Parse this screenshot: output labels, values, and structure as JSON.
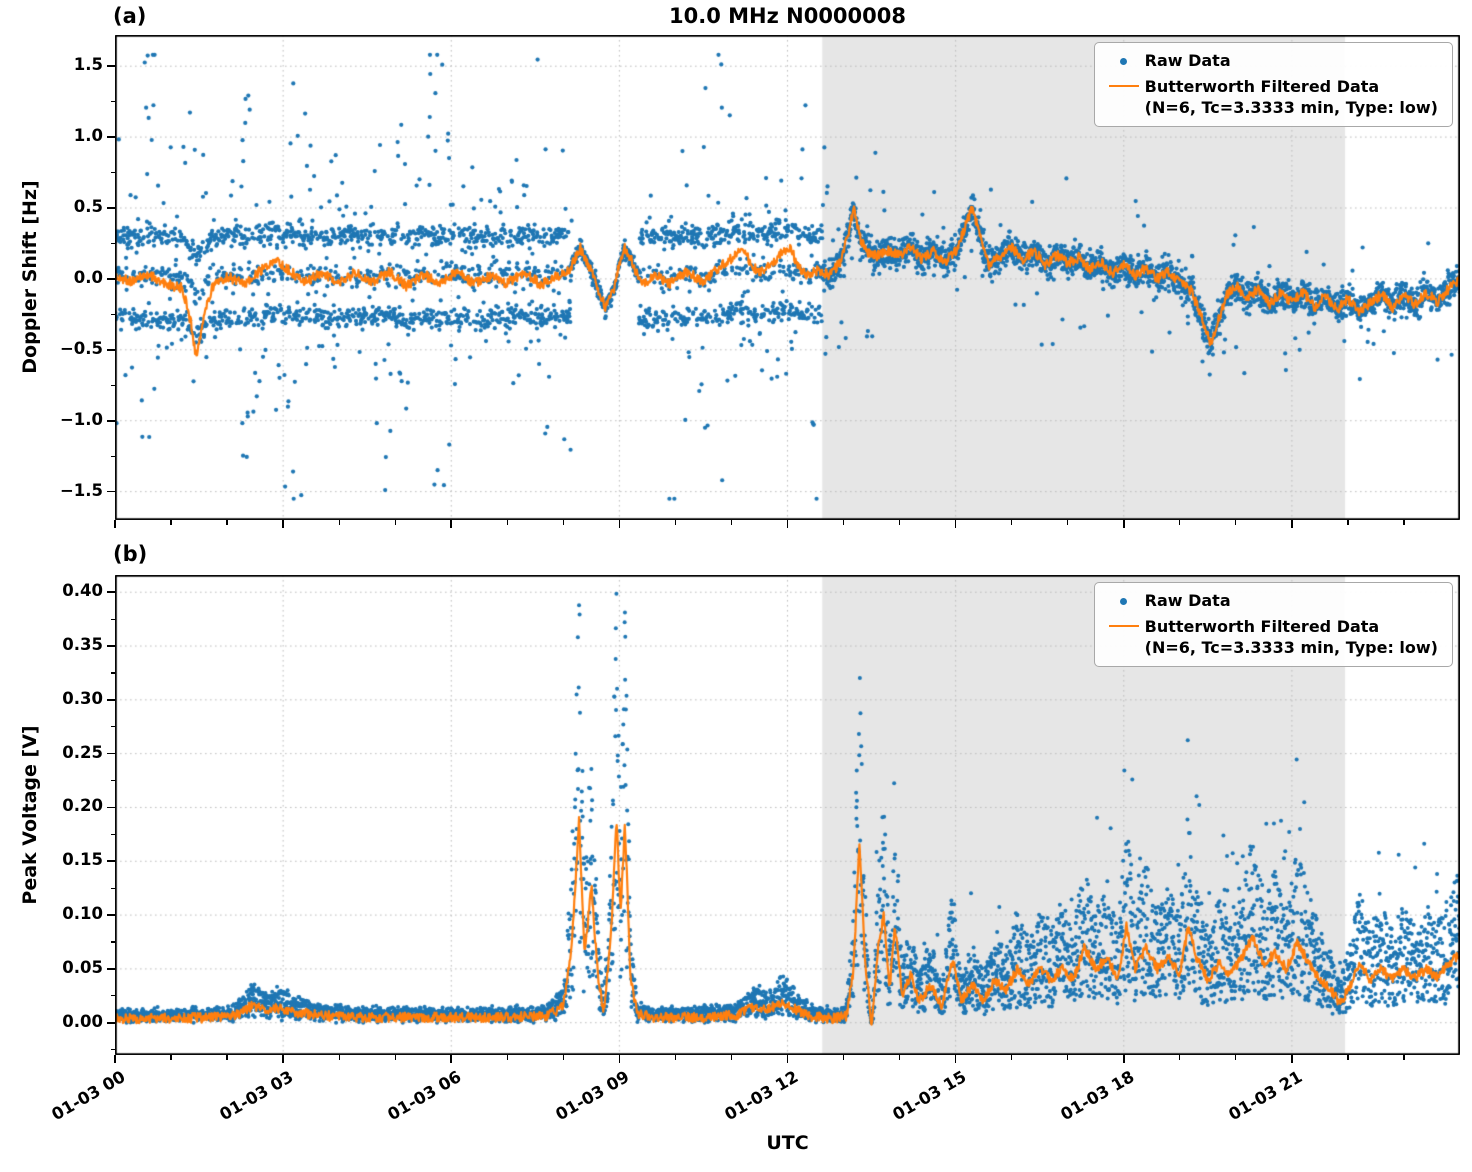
{
  "figure": {
    "title": "10.0 MHz N0000008",
    "panel_a_label": "(a)",
    "panel_b_label": "(b)",
    "xlabel": "UTC",
    "colors": {
      "raw": "#1f77b4",
      "filtered": "#ff7f0e",
      "shade": "#e6e6e6",
      "grid": "#bdbdbd",
      "spine": "#000000"
    },
    "legend": {
      "raw_label": "Raw Data",
      "filtered_label_line1": "Butterworth Filtered Data",
      "filtered_label_line2": "(N=6, Tc=3.3333 min, Type: low)"
    }
  },
  "chart_data": [
    {
      "id": "doppler-shift",
      "type": "scatter",
      "title": "10.0 MHz N0000008",
      "ylabel": "Doppler Shift [Hz]",
      "xlabel": "UTC",
      "ylim": [
        -1.7,
        1.72
      ],
      "yticks": [
        -1.5,
        -1.0,
        -0.5,
        0.0,
        0.5,
        1.0,
        1.5
      ],
      "ytick_labels": [
        "−1.5",
        "−1.0",
        "−0.5",
        "0.0",
        "0.5",
        "1.0",
        "1.5"
      ],
      "ytick_minor_step": 0.25,
      "xlim_hours": [
        0,
        24
      ],
      "xtick_hours": [
        0,
        3,
        6,
        9,
        12,
        15,
        18,
        21
      ],
      "xtick_labels": [
        "01-03 00",
        "01-03 03",
        "01-03 06",
        "01-03 09",
        "01-03 12",
        "01-03 15",
        "01-03 18",
        "01-03 21"
      ],
      "shade_span_hours": [
        12.62,
        21.95
      ],
      "series": {
        "raw": {
          "name": "Raw Data",
          "marker": "dot",
          "model": {
            "kind": "doppler_raw",
            "n_points": 5400,
            "bands": [
              -0.27,
              0.02,
              0.3
            ],
            "band_weights": [
              0.38,
              0.24,
              0.38
            ],
            "band_sigma": 0.065,
            "chaos_prob": 0.16,
            "chaos_max": 1.45,
            "tight_interval": [
              8.15,
              9.35
            ],
            "tight_sigma": 0.05,
            "transition_t": 12.62,
            "post_sigma": 0.09,
            "post_outlier_prob": 0.05,
            "post_outlier_max": 0.55,
            "early_post_until": 13.6,
            "early_post_outlier_prob": 0.12,
            "early_post_outlier_max": 0.85,
            "clip": [
              -1.55,
              1.58
            ]
          }
        },
        "filtered": {
          "name": "Butterworth Filtered Data (N=6, Tc=3.3333 min, Type: low)",
          "jitter": 0.035,
          "points": [
            [
              0,
              0.02
            ],
            [
              0.3,
              -0.02
            ],
            [
              0.6,
              0.03
            ],
            [
              0.9,
              -0.04
            ],
            [
              1.2,
              -0.06
            ],
            [
              1.35,
              -0.3
            ],
            [
              1.45,
              -0.55
            ],
            [
              1.6,
              -0.22
            ],
            [
              1.75,
              -0.05
            ],
            [
              2,
              0.02
            ],
            [
              2.3,
              -0.04
            ],
            [
              2.6,
              0.06
            ],
            [
              2.85,
              0.13
            ],
            [
              3.1,
              0.06
            ],
            [
              3.4,
              -0.02
            ],
            [
              3.7,
              0.04
            ],
            [
              4,
              -0.03
            ],
            [
              4.3,
              0.05
            ],
            [
              4.6,
              -0.02
            ],
            [
              4.9,
              0.05
            ],
            [
              5.2,
              -0.05
            ],
            [
              5.5,
              0.03
            ],
            [
              5.8,
              -0.03
            ],
            [
              6.1,
              0.05
            ],
            [
              6.4,
              -0.03
            ],
            [
              6.7,
              0.02
            ],
            [
              7,
              -0.03
            ],
            [
              7.3,
              0.05
            ],
            [
              7.6,
              -0.04
            ],
            [
              7.9,
              0.02
            ],
            [
              8.1,
              0.06
            ],
            [
              8.3,
              0.22
            ],
            [
              8.45,
              0.1
            ],
            [
              8.6,
              -0.06
            ],
            [
              8.75,
              -0.2
            ],
            [
              8.9,
              -0.08
            ],
            [
              9.0,
              0.1
            ],
            [
              9.1,
              0.22
            ],
            [
              9.25,
              0.1
            ],
            [
              9.4,
              -0.05
            ],
            [
              9.6,
              0.03
            ],
            [
              9.9,
              -0.03
            ],
            [
              10.2,
              0.05
            ],
            [
              10.5,
              -0.02
            ],
            [
              10.8,
              0.09
            ],
            [
              11.05,
              0.16
            ],
            [
              11.2,
              0.22
            ],
            [
              11.35,
              0.1
            ],
            [
              11.5,
              0.04
            ],
            [
              11.7,
              0.1
            ],
            [
              11.9,
              0.18
            ],
            [
              12.05,
              0.22
            ],
            [
              12.2,
              0.08
            ],
            [
              12.35,
              0.02
            ],
            [
              12.55,
              0.06
            ],
            [
              12.75,
              0.03
            ],
            [
              12.95,
              0.12
            ],
            [
              13.1,
              0.35
            ],
            [
              13.18,
              0.5
            ],
            [
              13.3,
              0.28
            ],
            [
              13.45,
              0.18
            ],
            [
              13.6,
              0.16
            ],
            [
              13.8,
              0.2
            ],
            [
              14,
              0.17
            ],
            [
              14.2,
              0.22
            ],
            [
              14.4,
              0.14
            ],
            [
              14.6,
              0.2
            ],
            [
              14.8,
              0.12
            ],
            [
              15,
              0.2
            ],
            [
              15.15,
              0.35
            ],
            [
              15.3,
              0.5
            ],
            [
              15.45,
              0.28
            ],
            [
              15.6,
              0.1
            ],
            [
              15.8,
              0.16
            ],
            [
              16,
              0.22
            ],
            [
              16.2,
              0.14
            ],
            [
              16.4,
              0.2
            ],
            [
              16.6,
              0.1
            ],
            [
              16.8,
              0.17
            ],
            [
              17,
              0.11
            ],
            [
              17.2,
              0.15
            ],
            [
              17.4,
              0.07
            ],
            [
              17.6,
              0.12
            ],
            [
              17.8,
              0.04
            ],
            [
              18,
              0.1
            ],
            [
              18.2,
              0.02
            ],
            [
              18.4,
              0.08
            ],
            [
              18.6,
              0.0
            ],
            [
              18.8,
              0.05
            ],
            [
              19,
              -0.03
            ],
            [
              19.2,
              -0.08
            ],
            [
              19.4,
              -0.28
            ],
            [
              19.55,
              -0.45
            ],
            [
              19.7,
              -0.28
            ],
            [
              19.85,
              -0.1
            ],
            [
              20,
              -0.05
            ],
            [
              20.2,
              -0.13
            ],
            [
              20.4,
              -0.07
            ],
            [
              20.6,
              -0.18
            ],
            [
              20.8,
              -0.1
            ],
            [
              21,
              -0.16
            ],
            [
              21.2,
              -0.09
            ],
            [
              21.4,
              -0.2
            ],
            [
              21.6,
              -0.12
            ],
            [
              21.8,
              -0.22
            ],
            [
              22,
              -0.14
            ],
            [
              22.2,
              -0.24
            ],
            [
              22.4,
              -0.17
            ],
            [
              22.6,
              -0.11
            ],
            [
              22.8,
              -0.2
            ],
            [
              23,
              -0.12
            ],
            [
              23.2,
              -0.18
            ],
            [
              23.4,
              -0.1
            ],
            [
              23.6,
              -0.16
            ],
            [
              23.8,
              -0.07
            ],
            [
              24,
              0.0
            ]
          ]
        }
      }
    },
    {
      "id": "peak-voltage",
      "type": "scatter",
      "ylabel": "Peak Voltage [V]",
      "xlabel": "UTC",
      "ylim": [
        -0.03,
        0.416
      ],
      "yticks": [
        0.0,
        0.05,
        0.1,
        0.15,
        0.2,
        0.25,
        0.3,
        0.35,
        0.4
      ],
      "ytick_labels": [
        "0.00",
        "0.05",
        "0.10",
        "0.15",
        "0.20",
        "0.25",
        "0.30",
        "0.35",
        "0.40"
      ],
      "ytick_minor_step": 0.025,
      "xlim_hours": [
        0,
        24
      ],
      "xtick_hours": [
        0,
        3,
        6,
        9,
        12,
        15,
        18,
        21
      ],
      "xtick_labels": [
        "01-03 00",
        "01-03 03",
        "01-03 06",
        "01-03 09",
        "01-03 12",
        "01-03 15",
        "01-03 18",
        "01-03 21"
      ],
      "shade_span_hours": [
        12.62,
        21.95
      ],
      "series": {
        "raw": {
          "name": "Raw Data",
          "marker": "dot",
          "model": {
            "kind": "voltage_raw",
            "n_points": 5400,
            "mult_min": 0.35,
            "mult_max": 2.15,
            "base_sigma": 0.0035,
            "post_t": 13.1,
            "post_outlier_prob": 0.03,
            "post_outlier_mult": 1.7,
            "clip": [
              0.0,
              0.4
            ]
          }
        },
        "filtered": {
          "name": "Butterworth Filtered Data (N=6, Tc=3.3333 min, Type: low)",
          "jitter": 0.0045,
          "points": [
            [
              0,
              0.004
            ],
            [
              1,
              0.004
            ],
            [
              2,
              0.005
            ],
            [
              2.2,
              0.008
            ],
            [
              2.45,
              0.016
            ],
            [
              2.7,
              0.012
            ],
            [
              2.95,
              0.014
            ],
            [
              3.2,
              0.01
            ],
            [
              3.6,
              0.007
            ],
            [
              4.2,
              0.005
            ],
            [
              5,
              0.005
            ],
            [
              6,
              0.005
            ],
            [
              7,
              0.005
            ],
            [
              7.7,
              0.006
            ],
            [
              8.0,
              0.015
            ],
            [
              8.15,
              0.07
            ],
            [
              8.28,
              0.19
            ],
            [
              8.38,
              0.06
            ],
            [
              8.5,
              0.13
            ],
            [
              8.62,
              0.04
            ],
            [
              8.72,
              0.01
            ],
            [
              8.85,
              0.08
            ],
            [
              8.95,
              0.19
            ],
            [
              9.02,
              0.1
            ],
            [
              9.1,
              0.185
            ],
            [
              9.2,
              0.04
            ],
            [
              9.32,
              0.008
            ],
            [
              9.6,
              0.005
            ],
            [
              10.5,
              0.005
            ],
            [
              11.1,
              0.007
            ],
            [
              11.4,
              0.015
            ],
            [
              11.65,
              0.012
            ],
            [
              11.9,
              0.02
            ],
            [
              12.15,
              0.012
            ],
            [
              12.4,
              0.006
            ],
            [
              12.8,
              0.004
            ],
            [
              13.05,
              0.006
            ],
            [
              13.18,
              0.05
            ],
            [
              13.28,
              0.17
            ],
            [
              13.38,
              0.06
            ],
            [
              13.5,
              -0.004
            ],
            [
              13.62,
              0.07
            ],
            [
              13.72,
              0.1
            ],
            [
              13.82,
              0.03
            ],
            [
              13.92,
              0.09
            ],
            [
              14.05,
              0.025
            ],
            [
              14.2,
              0.045
            ],
            [
              14.35,
              0.02
            ],
            [
              14.55,
              0.035
            ],
            [
              14.75,
              0.015
            ],
            [
              14.95,
              0.06
            ],
            [
              15.1,
              0.02
            ],
            [
              15.3,
              0.035
            ],
            [
              15.5,
              0.02
            ],
            [
              15.7,
              0.04
            ],
            [
              15.9,
              0.03
            ],
            [
              16.1,
              0.05
            ],
            [
              16.3,
              0.035
            ],
            [
              16.5,
              0.05
            ],
            [
              16.7,
              0.04
            ],
            [
              16.9,
              0.05
            ],
            [
              17.1,
              0.04
            ],
            [
              17.3,
              0.07
            ],
            [
              17.5,
              0.05
            ],
            [
              17.7,
              0.06
            ],
            [
              17.9,
              0.04
            ],
            [
              18.05,
              0.09
            ],
            [
              18.2,
              0.05
            ],
            [
              18.4,
              0.07
            ],
            [
              18.6,
              0.05
            ],
            [
              18.8,
              0.06
            ],
            [
              19.0,
              0.045
            ],
            [
              19.15,
              0.09
            ],
            [
              19.3,
              0.06
            ],
            [
              19.5,
              0.04
            ],
            [
              19.7,
              0.055
            ],
            [
              19.9,
              0.045
            ],
            [
              20.1,
              0.06
            ],
            [
              20.3,
              0.08
            ],
            [
              20.5,
              0.055
            ],
            [
              20.7,
              0.065
            ],
            [
              20.9,
              0.05
            ],
            [
              21.1,
              0.075
            ],
            [
              21.3,
              0.055
            ],
            [
              21.5,
              0.04
            ],
            [
              21.7,
              0.03
            ],
            [
              21.85,
              0.018
            ],
            [
              22.0,
              0.03
            ],
            [
              22.2,
              0.055
            ],
            [
              22.4,
              0.04
            ],
            [
              22.6,
              0.05
            ],
            [
              22.8,
              0.04
            ],
            [
              23.0,
              0.05
            ],
            [
              23.2,
              0.042
            ],
            [
              23.4,
              0.05
            ],
            [
              23.6,
              0.042
            ],
            [
              23.8,
              0.055
            ],
            [
              24,
              0.065
            ]
          ]
        }
      }
    }
  ]
}
